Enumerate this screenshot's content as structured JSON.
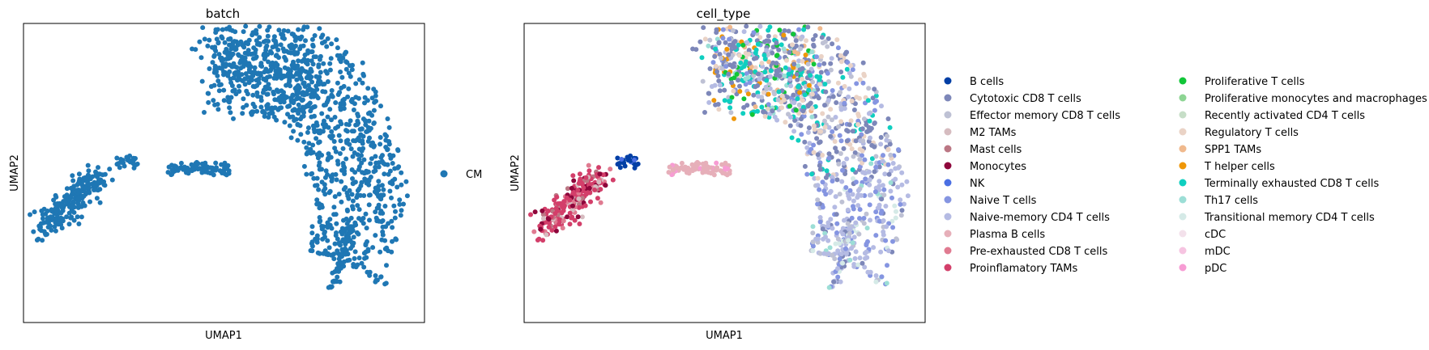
{
  "chart_data": [
    {
      "type": "scatter",
      "title": "batch",
      "xlabel": "UMAP1",
      "ylabel": "UMAP2",
      "xlim": [
        -5,
        14
      ],
      "ylim": [
        -4,
        11
      ],
      "grid": false,
      "legend_placement": "right",
      "legend": [
        {
          "name": "CM",
          "color": "#1f77b4"
        }
      ]
    },
    {
      "type": "scatter",
      "title": "cell_type",
      "xlabel": "UMAP1",
      "ylabel": "UMAP2",
      "xlim": [
        -5,
        14
      ],
      "ylim": [
        -4,
        11
      ],
      "grid": false,
      "legend_placement": "right",
      "legend": [
        {
          "name": "B cells",
          "color": "#023fa5"
        },
        {
          "name": "Cytotoxic CD8 T cells",
          "color": "#7d87b9"
        },
        {
          "name": "Effector memory CD8 T cells",
          "color": "#bec1d4"
        },
        {
          "name": "M2 TAMs",
          "color": "#d6bcc0"
        },
        {
          "name": "Mast cells",
          "color": "#bb7784"
        },
        {
          "name": "Monocytes",
          "color": "#8e063b"
        },
        {
          "name": "NK",
          "color": "#4a6fe3"
        },
        {
          "name": "Naive T cells",
          "color": "#8595e1"
        },
        {
          "name": "Naive-memory CD4 T cells",
          "color": "#b5bbe3"
        },
        {
          "name": "Plasma B cells",
          "color": "#e6afb9"
        },
        {
          "name": "Pre-exhausted CD8 T cells",
          "color": "#e07b91"
        },
        {
          "name": "Proinflamatory TAMs",
          "color": "#d33f6a"
        },
        {
          "name": "Proliferative T cells",
          "color": "#11c638"
        },
        {
          "name": "Proliferative monocytes and macrophages",
          "color": "#8dd593"
        },
        {
          "name": "Recently activated CD4 T cells",
          "color": "#c6dec7"
        },
        {
          "name": "Regulatory T cells",
          "color": "#ead3c6"
        },
        {
          "name": "SPP1 TAMs",
          "color": "#f0b98d"
        },
        {
          "name": "T helper cells",
          "color": "#ef9708"
        },
        {
          "name": "Terminally exhausted CD8 T cells",
          "color": "#0fcfc0"
        },
        {
          "name": "Th17 cells",
          "color": "#9cded6"
        },
        {
          "name": "Transitional memory CD4 T cells",
          "color": "#d5eae7"
        },
        {
          "name": "cDC",
          "color": "#f3e1eb"
        },
        {
          "name": "mDC",
          "color": "#f6c4e1"
        },
        {
          "name": "pDC",
          "color": "#f79cd4"
        }
      ]
    }
  ]
}
